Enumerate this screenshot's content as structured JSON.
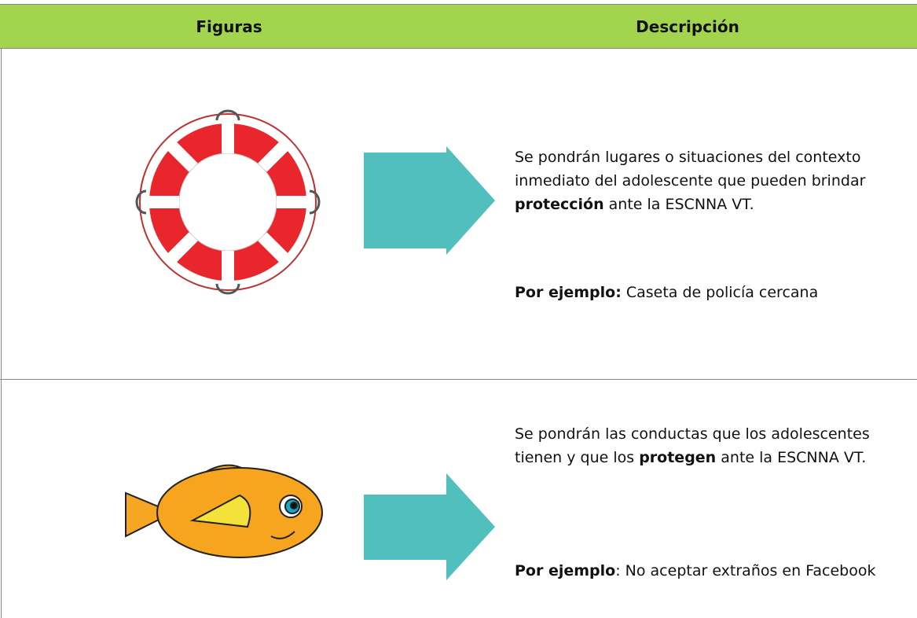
{
  "table": {
    "header": [
      "Figuras",
      "Descripción"
    ],
    "rows": [
      {
        "description": {
          "before": "Se pondrán lugares o situaciones del contexto inmediato del adolescente que pueden brindar ",
          "bold": "protección",
          "after": " ante la ESCNNA VT."
        },
        "example": {
          "bold": "Por ejemplo:",
          "text": " Caseta de policía cercana"
        }
      },
      {
        "description": {
          "before": "Se pondrán las conductas que los adolescentes tienen y que los ",
          "bold": "protegen",
          "after": " ante la ESCNNA VT."
        },
        "example": {
          "bold": "Por ejemplo",
          "text": ": No aceptar extraños en Facebook"
        }
      }
    ]
  }
}
